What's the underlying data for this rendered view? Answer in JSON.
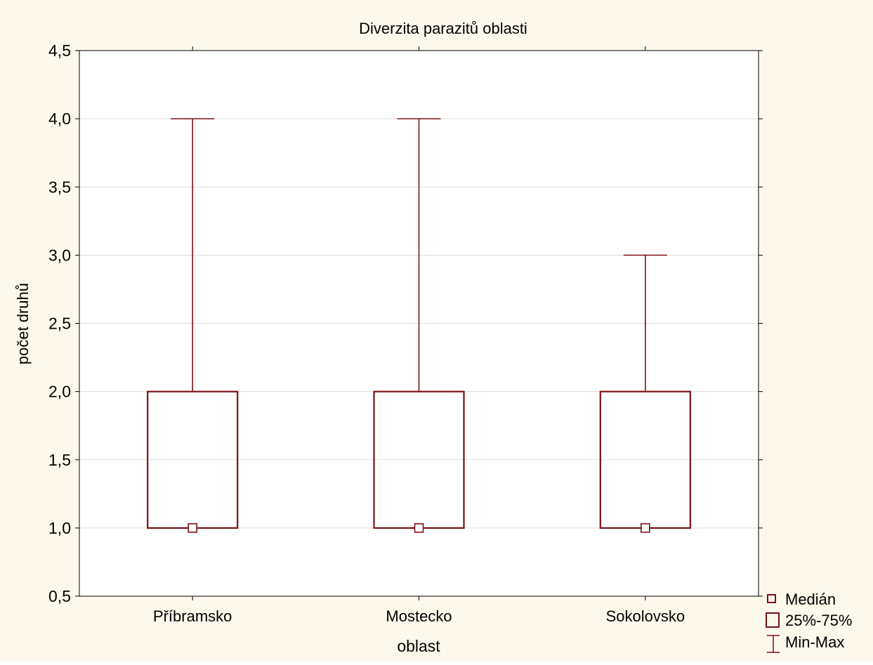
{
  "chart_data": {
    "type": "box",
    "title": "Diverzita parazitů oblasti",
    "xlabel": "oblast",
    "ylabel": "počet druhů",
    "ylim": [
      0.5,
      4.5
    ],
    "ytick_values": [
      0.5,
      1.0,
      1.5,
      2.0,
      2.5,
      3.0,
      3.5,
      4.0,
      4.5
    ],
    "ytick_labels": [
      "0,5",
      "1,0",
      "1,5",
      "2,0",
      "2,5",
      "3,0",
      "3,5",
      "4,0",
      "4,5"
    ],
    "grid": true,
    "legend_position": "bottom-right, outside plot",
    "categories": [
      "Příbramsko",
      "Mostecko",
      "Sokolovsko"
    ],
    "boxes": [
      {
        "category": "Příbramsko",
        "min": 1.0,
        "q1": 1.0,
        "median": 1.0,
        "q3": 2.0,
        "max": 4.0
      },
      {
        "category": "Mostecko",
        "min": 1.0,
        "q1": 1.0,
        "median": 1.0,
        "q3": 2.0,
        "max": 4.0
      },
      {
        "category": "Sokolovsko",
        "min": 1.0,
        "q1": 1.0,
        "median": 1.0,
        "q3": 2.0,
        "max": 3.0
      }
    ],
    "legend": [
      {
        "symbol": "median-square",
        "label": "Medián"
      },
      {
        "symbol": "box",
        "label": "25%-75%"
      },
      {
        "symbol": "whisker",
        "label": "Min-Max"
      }
    ],
    "colors": {
      "background": "#fdf8ec",
      "plot_area": "#ffffff",
      "series": "#7b1113",
      "grid": "#dddddd",
      "axis": "#000000"
    }
  }
}
